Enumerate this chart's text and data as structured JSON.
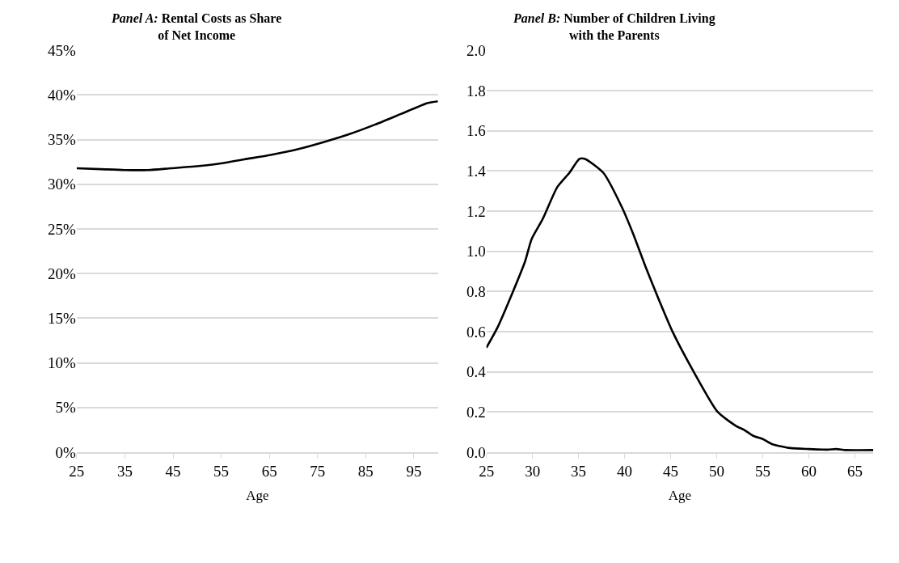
{
  "chart_data": [
    {
      "type": "line",
      "title": "Panel A: Rental Costs as Share\nof Net Income",
      "xlabel": "Age",
      "x": [
        25,
        30,
        34.9,
        39.8,
        44.6,
        49.5,
        54.4,
        59.8,
        65.3,
        70.7,
        76.1,
        81.5,
        87.0,
        92.4,
        97.8,
        100
      ],
      "series": [
        {
          "color": "#000000",
          "values": [
            31.8,
            31.7,
            31.6,
            31.6,
            31.8,
            32.0,
            32.3,
            32.8,
            33.3,
            33.9,
            34.7,
            35.6,
            36.7,
            37.9,
            39.1,
            39.3
          ]
        }
      ],
      "xlim": [
        25,
        100
      ],
      "xticks": [
        25,
        35,
        45,
        55,
        65,
        75,
        85,
        95
      ],
      "ylim": [
        0,
        45
      ],
      "yticks": [
        {
          "value": 0,
          "label": "0%"
        },
        {
          "value": 5,
          "label": "5%"
        },
        {
          "value": 10,
          "label": "10%"
        },
        {
          "value": 15,
          "label": "15%"
        },
        {
          "value": 20,
          "label": "20%"
        },
        {
          "value": 25,
          "label": "25%"
        },
        {
          "value": 30,
          "label": "30%"
        },
        {
          "value": 35,
          "label": "35%"
        },
        {
          "value": 40,
          "label": "40%"
        },
        {
          "value": 45,
          "label": "45%"
        }
      ],
      "grid": "y",
      "marker": "none",
      "line_style": "solid"
    },
    {
      "type": "line",
      "title": "Panel B: Number of Children Living\nwith the Parents",
      "xlabel": "Age",
      "x": [
        25,
        26.2,
        27.8,
        29.2,
        29.9,
        31.1,
        32.7,
        34.0,
        35.1,
        35.7,
        37.7,
        39.7,
        40.9,
        42.3,
        43.8,
        45.2,
        47.5,
        50.1,
        52.1,
        53,
        54,
        55,
        56,
        58,
        60,
        62,
        63,
        64,
        67
      ],
      "series": [
        {
          "color": "#000000",
          "values": [
            0.52,
            0.62,
            0.79,
            0.95,
            1.06,
            1.16,
            1.32,
            1.39,
            1.46,
            1.46,
            1.39,
            1.22,
            1.09,
            0.92,
            0.75,
            0.6,
            0.4,
            0.2,
            0.13,
            0.11,
            0.08,
            0.065,
            0.04,
            0.02,
            0.015,
            0.012,
            0.015,
            0.01,
            0.01
          ]
        }
      ],
      "xlim": [
        25,
        67
      ],
      "xticks": [
        25,
        30,
        35,
        40,
        45,
        50,
        55,
        60,
        65
      ],
      "ylim": [
        0,
        2
      ],
      "yticks": [
        {
          "value": 0,
          "label": "0.0"
        },
        {
          "value": 0.2,
          "label": "0.2"
        },
        {
          "value": 0.4,
          "label": "0.4"
        },
        {
          "value": 0.6,
          "label": "0.6"
        },
        {
          "value": 0.8,
          "label": "0.8"
        },
        {
          "value": 1,
          "label": "1.0"
        },
        {
          "value": 1.2,
          "label": "1.2"
        },
        {
          "value": 1.4,
          "label": "1.4"
        },
        {
          "value": 1.6,
          "label": "1.6"
        },
        {
          "value": 1.8,
          "label": "1.8"
        },
        {
          "value": 2,
          "label": "2.0"
        }
      ],
      "grid": "y",
      "marker": "none",
      "line_style": "solid"
    }
  ]
}
